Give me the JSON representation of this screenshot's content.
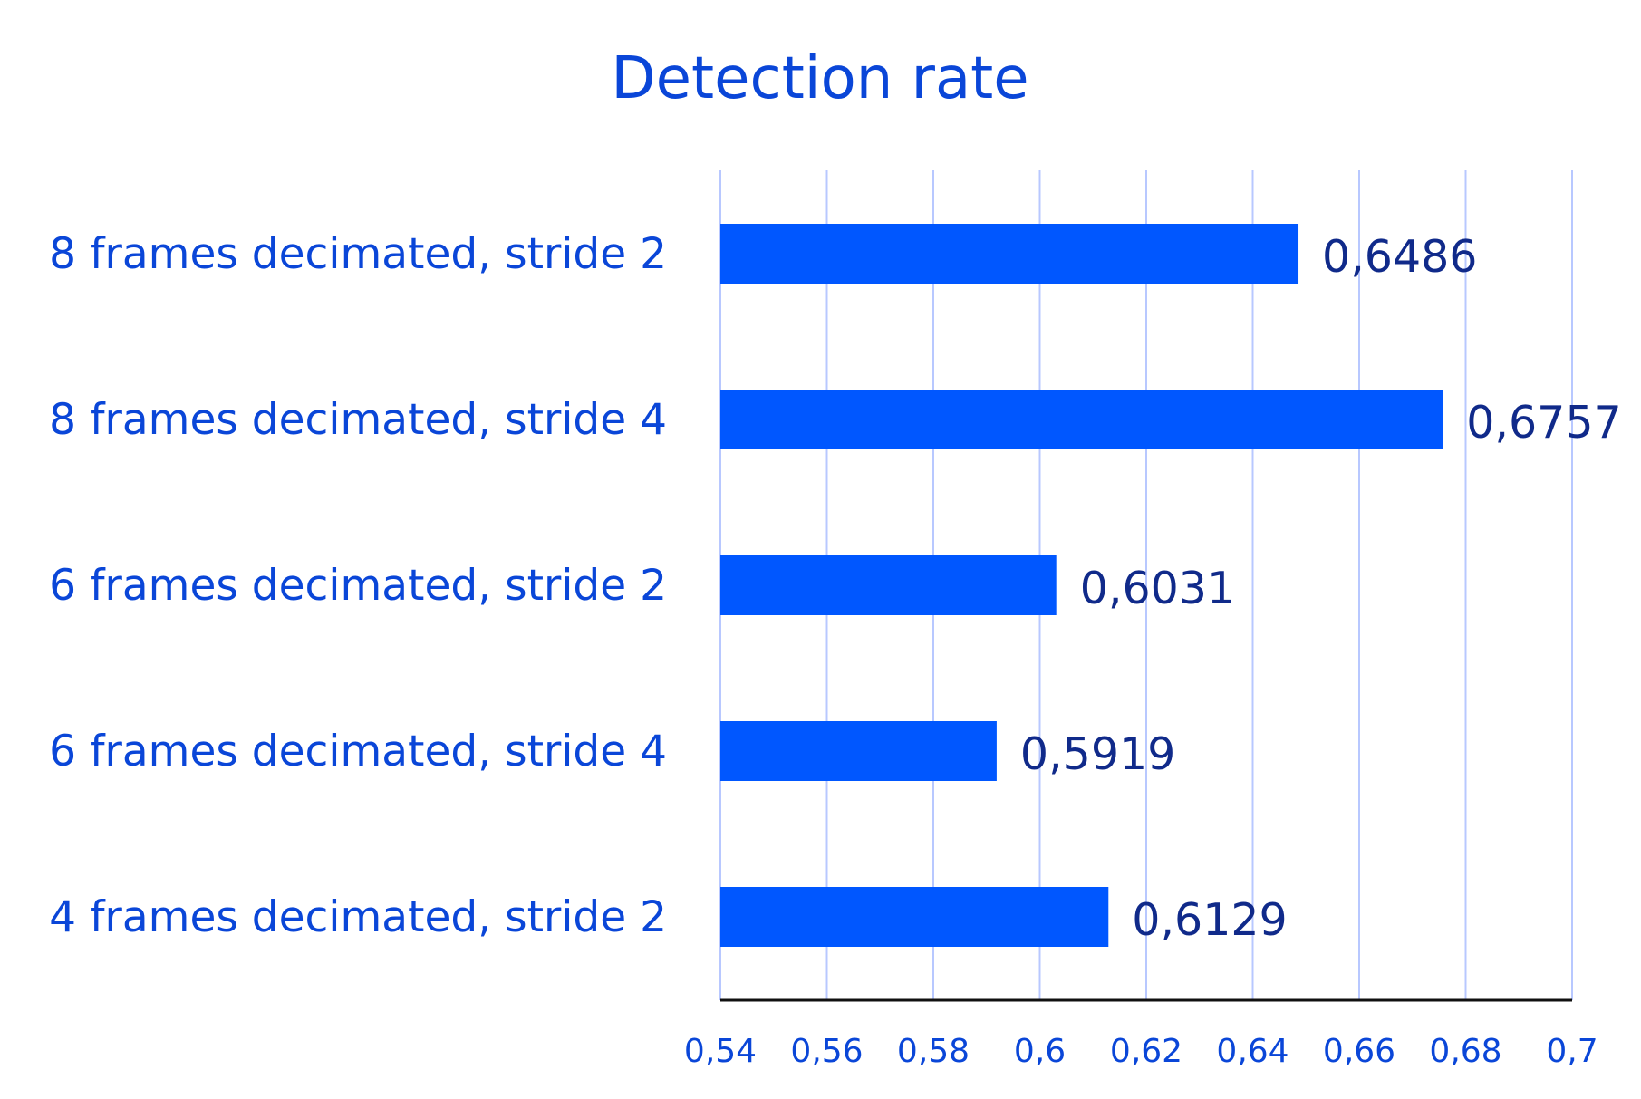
{
  "chart_data": {
    "type": "bar",
    "orientation": "horizontal",
    "title": "Detection rate",
    "categories": [
      "8 frames decimated, stride 2",
      "8 frames decimated, stride 4",
      "6 frames decimated, stride 2",
      "6 frames decimated, stride 4",
      "4 frames decimated, stride 2"
    ],
    "values": [
      0.6486,
      0.6757,
      0.6031,
      0.5919,
      0.6129
    ],
    "value_labels": [
      "0,6486",
      "0,6757",
      "0,6031",
      "0,5919",
      "0,6129"
    ],
    "xlim": [
      0.54,
      0.7
    ],
    "xticks": [
      0.54,
      0.56,
      0.58,
      0.6,
      0.62,
      0.64,
      0.66,
      0.68,
      0.7
    ],
    "xtick_labels": [
      "0,54",
      "0,56",
      "0,58",
      "0,6",
      "0,62",
      "0,64",
      "0,66",
      "0,68",
      "0,7"
    ],
    "xlabel": "",
    "ylabel": "",
    "grid": true,
    "legend": "none",
    "colors": {
      "bar": "#0057ff",
      "text": "#0a46d8",
      "value_text": "#102a8a",
      "grid": "#b8c8ff"
    }
  }
}
